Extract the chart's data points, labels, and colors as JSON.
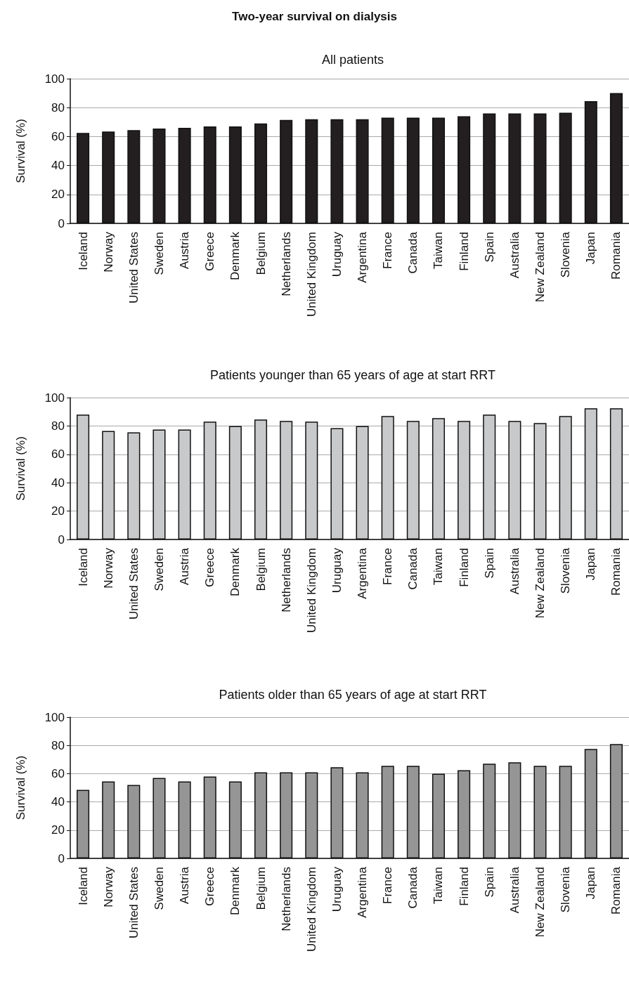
{
  "chart_data": [
    {
      "type": "bar",
      "title": "Two-year survival on dialysis",
      "subtitle": "All patients",
      "ylabel": "Survival (%)",
      "categories": [
        "Iceland",
        "Norway",
        "United States",
        "Sweden",
        "Austria",
        "Greece",
        "Denmark",
        "Belgium",
        "Netherlands",
        "United Kingdom",
        "Uruguay",
        "Argentina",
        "France",
        "Canada",
        "Taiwan",
        "Finland",
        "Spain",
        "Australia",
        "New Zealand",
        "Slovenia",
        "Japan",
        "Romania"
      ],
      "series": [
        {
          "color": "#231f20",
          "values": [
            62.5,
            63.5,
            64.5,
            65.5,
            66,
            67,
            67,
            69,
            71.5,
            72,
            72,
            72,
            73,
            73,
            73,
            74,
            76,
            76,
            76,
            76.5,
            84.5,
            90
          ]
        }
      ],
      "ylim": [
        0,
        100
      ],
      "yticks": [
        0,
        20,
        40,
        60,
        80,
        100
      ],
      "grid": "y"
    },
    {
      "type": "bar",
      "title": "Patients younger than 65 years of age at start RRT",
      "ylabel": "Survival (%)",
      "categories": [
        "Iceland",
        "Norway",
        "United States",
        "Sweden",
        "Austria",
        "Greece",
        "Denmark",
        "Belgium",
        "Netherlands",
        "United Kingdom",
        "Uruguay",
        "Argentina",
        "France",
        "Canada",
        "Taiwan",
        "Finland",
        "Spain",
        "Australia",
        "New Zealand",
        "Slovenia",
        "Japan",
        "Romania"
      ],
      "series": [
        {
          "color": "#c8c9ca",
          "values": [
            88,
            76.5,
            75.5,
            77.5,
            77.5,
            83,
            80,
            84.5,
            83.5,
            83,
            78.5,
            80,
            87,
            83.5,
            85.5,
            83.5,
            88,
            83.5,
            82,
            87,
            92.5,
            92.5
          ]
        }
      ],
      "ylim": [
        0,
        100
      ],
      "yticks": [
        0,
        20,
        40,
        60,
        80,
        100
      ],
      "grid": "y"
    },
    {
      "type": "bar",
      "title": "Patients older than 65 years of age at start RRT",
      "ylabel": "Survival (%)",
      "categories": [
        "Iceland",
        "Norway",
        "United States",
        "Sweden",
        "Austria",
        "Greece",
        "Denmark",
        "Belgium",
        "Netherlands",
        "United Kingdom",
        "Uruguay",
        "Argentina",
        "France",
        "Canada",
        "Taiwan",
        "Finland",
        "Spain",
        "Australia",
        "New Zealand",
        "Slovenia",
        "Japan",
        "Romania"
      ],
      "series": [
        {
          "color": "#959595",
          "values": [
            48.5,
            54.5,
            52,
            57,
            54.5,
            58,
            54.5,
            61,
            61,
            61,
            64.5,
            61,
            65.5,
            65.5,
            60,
            62.5,
            67,
            68,
            65.5,
            65.5,
            77.5,
            81
          ]
        }
      ],
      "ylim": [
        0,
        100
      ],
      "yticks": [
        0,
        20,
        40,
        60,
        80,
        100
      ],
      "grid": "y"
    }
  ]
}
